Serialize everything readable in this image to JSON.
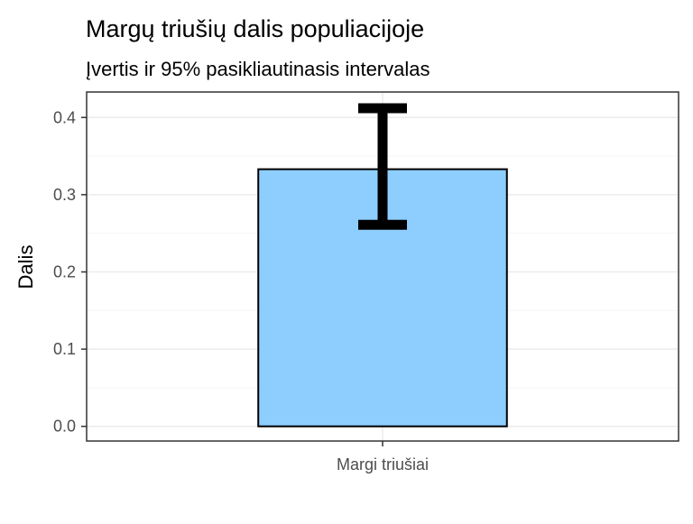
{
  "chart_data": {
    "type": "bar",
    "title": "Margų triušių dalis populiacijoje",
    "subtitle": "Įvertis ir 95% pasikliautinasis intervalas",
    "xlabel": "",
    "ylabel": "Dalis",
    "categories": [
      "Margi triušiai"
    ],
    "values": [
      0.333
    ],
    "error_bars": [
      {
        "lower": 0.261,
        "upper": 0.412
      }
    ],
    "ylim": [
      -0.019,
      0.433
    ],
    "yticks": [
      "0.0",
      "0.1",
      "0.2",
      "0.3",
      "0.4"
    ],
    "grid": true,
    "legend": "none",
    "colors": {
      "bar_fill": "#8ECEFF",
      "bar_stroke": "#000000",
      "error_bar": "#000000",
      "panel_border": "#333333",
      "grid_major": "#EBEBEB",
      "grid_minor": "#F5F5F5",
      "tick_label": "#4D4D4D",
      "text": "#000000"
    }
  }
}
